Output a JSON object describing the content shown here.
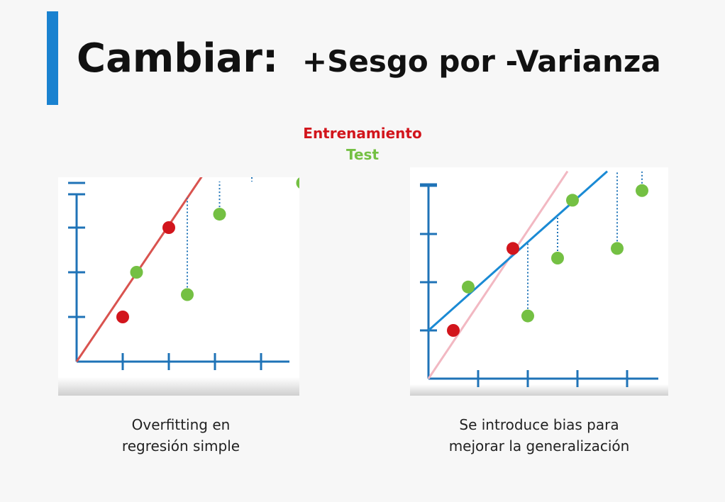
{
  "title": {
    "main": "Cambiar:",
    "sub": "+Sesgo por -Varianza"
  },
  "legend": {
    "training": {
      "label": "Entrenamiento",
      "color": "#d2151c"
    },
    "test": {
      "label": "Test",
      "color": "#74c043"
    }
  },
  "panels": [
    {
      "caption_line1": "Overfitting en",
      "caption_line2": "regresión simple",
      "training_points": [
        [
          1,
          1
        ],
        [
          2,
          3.0
        ]
      ],
      "test_points": [
        [
          1.3,
          2.0
        ],
        [
          2.4,
          1.5
        ],
        [
          3.1,
          3.3
        ],
        [
          3.8,
          5.0
        ],
        [
          4.9,
          4.0
        ],
        [
          5.5,
          5.0
        ]
      ],
      "fit_line": {
        "color": "#d9534f",
        "from": [
          0,
          0
        ],
        "to": [
          3.8,
          5.8
        ]
      }
    },
    {
      "caption_line1": "Se introduce bias para",
      "caption_line2": "mejorar la generalización",
      "training_points": [
        [
          0.5,
          1
        ],
        [
          1.7,
          2.7
        ]
      ],
      "test_points": [
        [
          0.8,
          1.9
        ],
        [
          2.0,
          1.3
        ],
        [
          2.6,
          2.5
        ],
        [
          2.9,
          3.7
        ],
        [
          3.8,
          2.7
        ],
        [
          4.3,
          3.9
        ]
      ],
      "fit_line": {
        "color": "#1a8ad4",
        "from": [
          0,
          1.0
        ],
        "to": [
          3.6,
          4.3
        ]
      },
      "reference_line": {
        "color": "#f2b8c2",
        "from": [
          0,
          0
        ],
        "to": [
          2.8,
          4.3
        ]
      }
    }
  ]
}
